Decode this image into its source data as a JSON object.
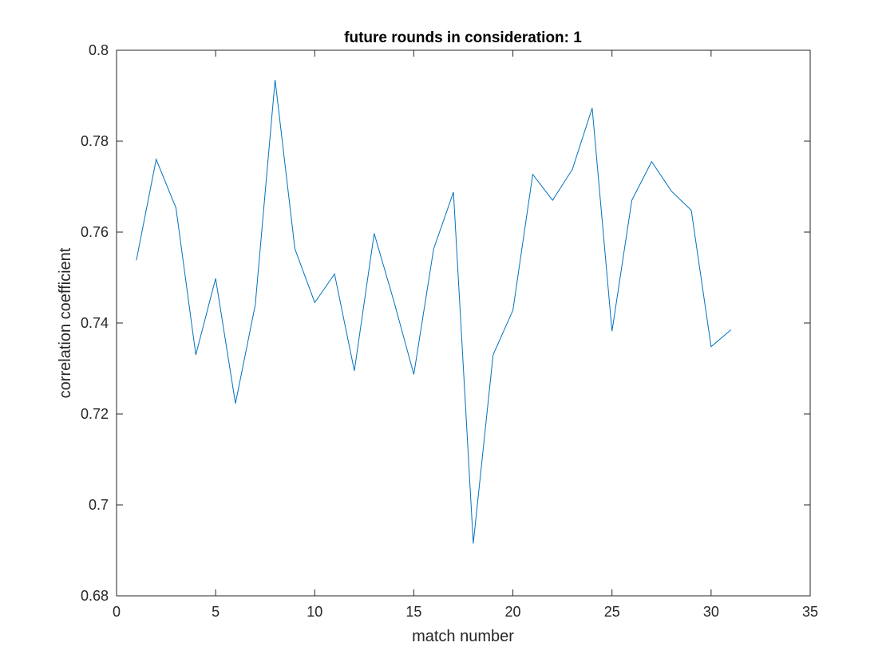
{
  "chart_data": {
    "type": "line",
    "title": "future rounds in consideration: 1",
    "xlabel": "match number",
    "ylabel": "correlation coefficient",
    "xlim": [
      0,
      35
    ],
    "ylim": [
      0.68,
      0.8
    ],
    "xticks": [
      0,
      5,
      10,
      15,
      20,
      25,
      30,
      35
    ],
    "xtick_labels": [
      "0",
      "5",
      "10",
      "15",
      "20",
      "25",
      "30",
      "35"
    ],
    "yticks": [
      0.68,
      0.7,
      0.72,
      0.74,
      0.76,
      0.78,
      0.8
    ],
    "ytick_labels": [
      "0.68",
      "0.7",
      "0.72",
      "0.74",
      "0.76",
      "0.78",
      "0.8"
    ],
    "grid": false,
    "series": [
      {
        "color": "#0072BD",
        "x": [
          1,
          2,
          3,
          4,
          5,
          6,
          7,
          8,
          9,
          10,
          11,
          12,
          13,
          14,
          15,
          16,
          17,
          18,
          19,
          20,
          21,
          22,
          23,
          24,
          25,
          26,
          27,
          28,
          29,
          30,
          31
        ],
        "y": [
          0.7538,
          0.776,
          0.7653,
          0.733,
          0.7498,
          0.7223,
          0.744,
          0.7935,
          0.7563,
          0.7445,
          0.7508,
          0.7295,
          0.7597,
          0.7447,
          0.7287,
          0.7563,
          0.7688,
          0.6915,
          0.733,
          0.7428,
          0.7727,
          0.767,
          0.7738,
          0.7873,
          0.7382,
          0.767,
          0.7755,
          0.769,
          0.7648,
          0.7348,
          0.7385
        ]
      }
    ]
  }
}
